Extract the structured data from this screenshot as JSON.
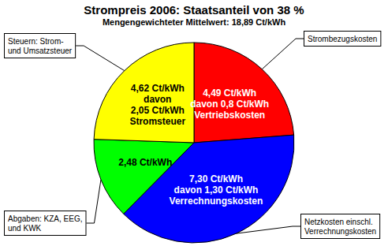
{
  "chart_data": {
    "type": "pie",
    "title": "Strompreis 2006: Staatsanteil von 38 %",
    "subtitle": "Mengengewichteter Mittelwert: 18,89 Ct/kWh",
    "categories": [
      "Strombezugskosten",
      "Netzkosten einschl.\nVerrechnungskosten",
      "Abgaben: KZA, EEG,\nund KWK",
      "Steuern: Strom-\nund Umsatzsteuer"
    ],
    "values": [
      4.49,
      7.3,
      2.48,
      4.62
    ],
    "value_labels": [
      "4,49 Ct/kWh",
      "7,30 Ct/kWh",
      "2,48 Ct/kWh",
      "4,62 Ct/kWh"
    ],
    "label_details": [
      "davon 0,8 Ct/kWh\nVertriebskosten",
      "davon 1,30 Ct/kWh\nVerrechnungskosten",
      null,
      "davon\n2,05 Ct/kWh\nStromsteuer"
    ],
    "colors": [
      "#ff0000",
      "#0000ff",
      "#00ff00",
      "#ffff00"
    ],
    "data_labels": true
  }
}
